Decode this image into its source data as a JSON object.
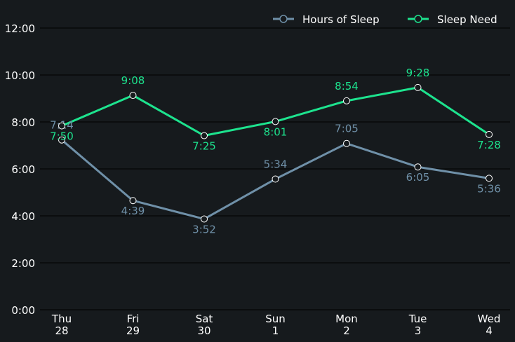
{
  "chart_data": {
    "type": "line",
    "title": "",
    "xlabel": "",
    "ylabel": "",
    "ylim": [
      0,
      12
    ],
    "grid": true,
    "legend_position": "top-right",
    "yticks": [
      "0:00",
      "2:00",
      "4:00",
      "6:00",
      "8:00",
      "10:00",
      "12:00"
    ],
    "categories": [
      {
        "day": "Thu",
        "date": "28"
      },
      {
        "day": "Fri",
        "date": "29"
      },
      {
        "day": "Sat",
        "date": "30"
      },
      {
        "day": "Sun",
        "date": "1"
      },
      {
        "day": "Mon",
        "date": "2"
      },
      {
        "day": "Tue",
        "date": "3"
      },
      {
        "day": "Wed",
        "date": "4"
      }
    ],
    "series": [
      {
        "name": "Hours of Sleep",
        "color": "#6f90a8",
        "values": [
          7.233,
          4.65,
          3.867,
          5.567,
          7.083,
          6.083,
          5.6
        ],
        "labels": [
          "7:14",
          "4:39",
          "3:52",
          "5:34",
          "7:05",
          "6:05",
          "5:36"
        ],
        "label_side": [
          "above",
          "below",
          "below",
          "above",
          "above",
          "below",
          "below"
        ]
      },
      {
        "name": "Sleep Need",
        "color": "#1de38e",
        "values": [
          7.833,
          9.133,
          7.417,
          8.017,
          8.9,
          9.467,
          7.467
        ],
        "labels": [
          "7:50",
          "9:08",
          "7:25",
          "8:01",
          "8:54",
          "9:28",
          "7:28"
        ],
        "label_side": [
          "below",
          "above",
          "below",
          "below",
          "above",
          "above",
          "below"
        ]
      }
    ]
  }
}
